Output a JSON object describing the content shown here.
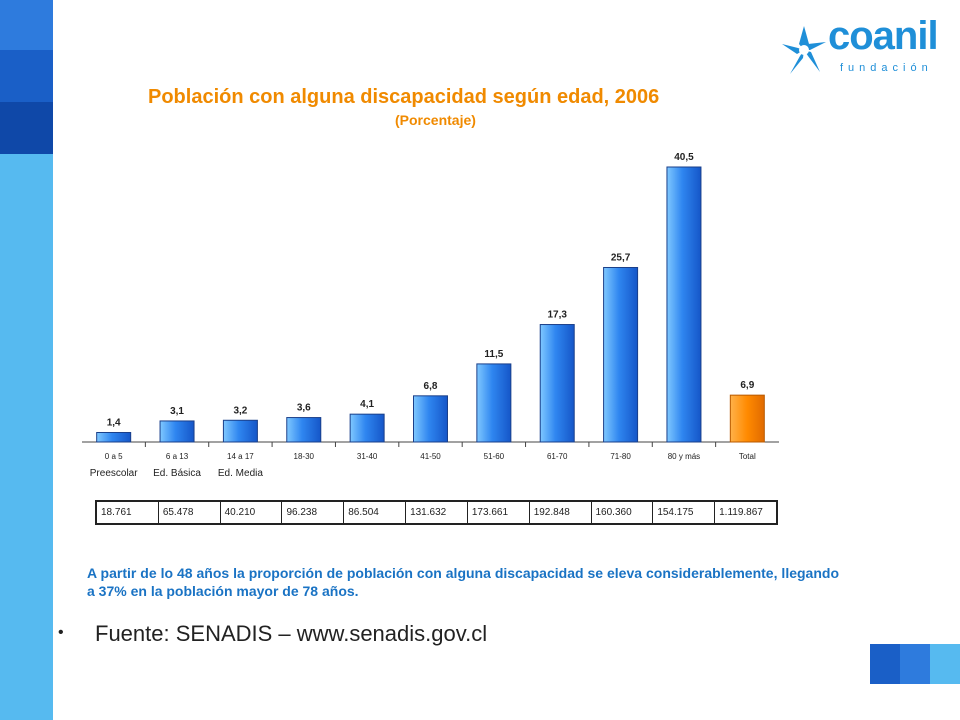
{
  "decor": {
    "strip_colors": [
      "#2e7bdd",
      "#1a5fc7",
      "#0f48a8"
    ],
    "corner_colors": [
      "#1a5fc7",
      "#2e7bdd",
      "#56baf0"
    ],
    "orange": "#f08a00",
    "bar_color": "#2f86f0",
    "total_bar_color": "#ff8a00"
  },
  "logo": {
    "word": "coanil",
    "sub": "fundación",
    "icon": "star-burst-icon"
  },
  "chart_data": {
    "type": "bar",
    "title": "Población con alguna discapacidad según edad, 2006",
    "subtitle": "(Porcentaje)",
    "categories": [
      "0 a 5",
      "6 a 13",
      "14 a 17",
      "18-30",
      "31-40",
      "41-50",
      "51-60",
      "61-70",
      "71-80",
      "80 y más",
      "Total"
    ],
    "sublabels": [
      "Preescolar",
      "Ed. Básica",
      "Ed. Media",
      "",
      "",
      "",
      "",
      "",
      "",
      "",
      ""
    ],
    "values": [
      1.4,
      3.1,
      3.2,
      3.6,
      4.1,
      6.8,
      11.5,
      17.3,
      25.7,
      40.5,
      6.9
    ],
    "value_labels": [
      "1,4",
      "3,1",
      "3,2",
      "3,6",
      "4,1",
      "6,8",
      "11,5",
      "17,3",
      "25,7",
      "40,5",
      "6,9"
    ],
    "ylim": [
      0,
      40.5
    ],
    "grid": false,
    "legend": "none"
  },
  "table": {
    "values": [
      "18.761",
      "65.478",
      "40.210",
      "96.238",
      "86.504",
      "131.632",
      "173.661",
      "192.848",
      "160.360",
      "154.175",
      "1.119.867"
    ]
  },
  "note": "A partir de lo 48 años la proporción de población con alguna discapacidad se eleva considerablemente, llegando a 37% en la población mayor de 78 años.",
  "source": {
    "bullet": "•",
    "text": "Fuente: SENADIS – www.senadis.gov.cl"
  }
}
